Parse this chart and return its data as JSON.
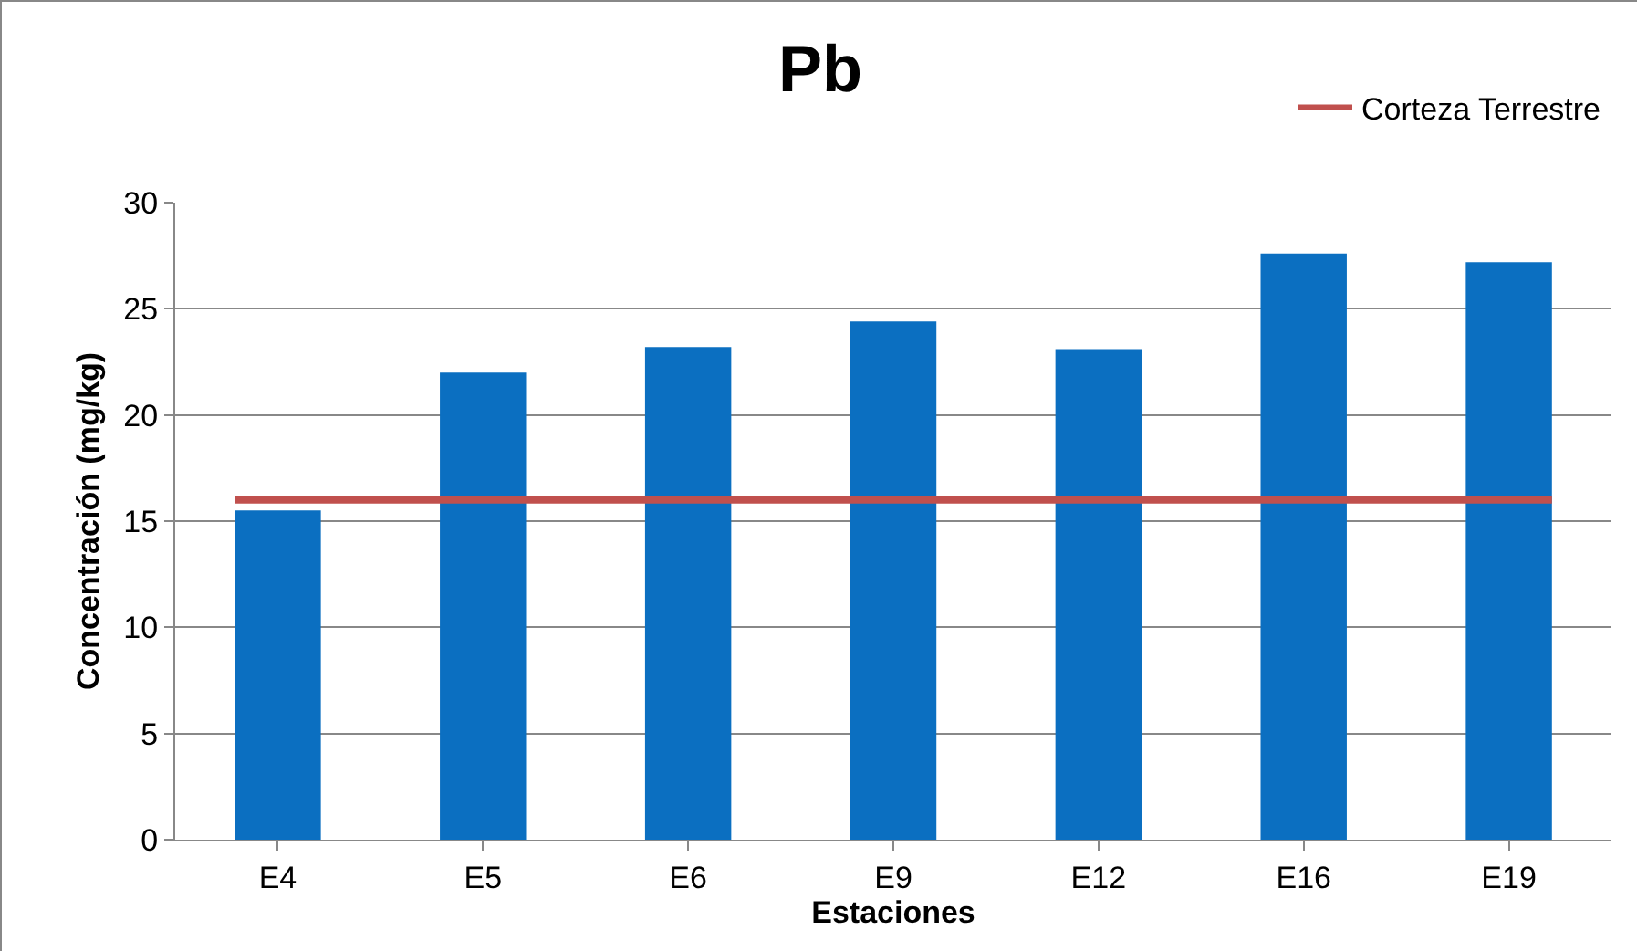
{
  "chart_data": {
    "type": "bar",
    "title": "Pb",
    "xlabel": "Estaciones",
    "ylabel": "Concentración (mg/kg)",
    "categories": [
      "E4",
      "E5",
      "E6",
      "E9",
      "E12",
      "E16",
      "E19"
    ],
    "values": [
      15.5,
      22.0,
      23.2,
      24.4,
      23.1,
      27.6,
      27.2
    ],
    "color": "#0b6fc1",
    "ylim": [
      0,
      30
    ],
    "yticks": [
      0,
      5,
      10,
      15,
      20,
      25,
      30
    ],
    "grid": "y",
    "legend": "top right",
    "ref_lines": [
      {
        "axis": "y",
        "value": 16,
        "label": "Corteza Terrestre",
        "color": "#c0504d"
      }
    ]
  }
}
